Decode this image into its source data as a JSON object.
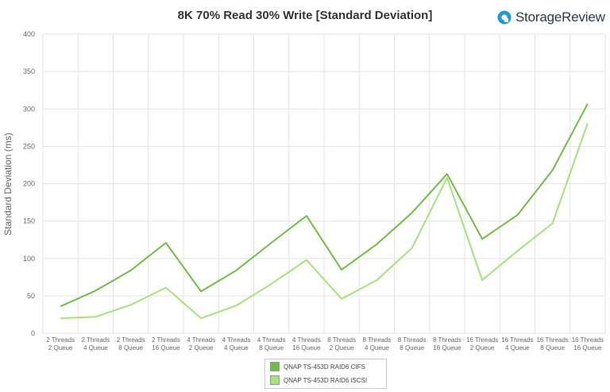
{
  "brand": {
    "name": "StorageReview",
    "logo_icon": "storagereview-logo-icon",
    "logo_color": "#1e9bd7"
  },
  "chart_data": {
    "type": "line",
    "title": "8K 70% Read 30% Write [Standard Deviation]",
    "xlabel": "",
    "ylabel": "Standard Deviation (ms)",
    "ylim": [
      0,
      400
    ],
    "yticks": [
      0,
      50,
      100,
      150,
      200,
      250,
      300,
      350,
      400
    ],
    "grid": true,
    "legend_position": "bottom",
    "categories": [
      [
        "2 Threads",
        "2 Queue"
      ],
      [
        "2 Threads",
        "4 Queue"
      ],
      [
        "2 Threads",
        "8 Queue"
      ],
      [
        "2 Threads",
        "16 Queue"
      ],
      [
        "4 Threads",
        "2 Queue"
      ],
      [
        "4 Threads",
        "4 Queue"
      ],
      [
        "4 Threads",
        "8 Queue"
      ],
      [
        "4 Threads",
        "16 Queue"
      ],
      [
        "8 Threads",
        "2 Queue"
      ],
      [
        "8 Threads",
        "4 Queue"
      ],
      [
        "8 Threads",
        "8 Queue"
      ],
      [
        "8 Threads",
        "16 Queue"
      ],
      [
        "16 Threads",
        "2 Queue"
      ],
      [
        "16 Threads",
        "4 Queue"
      ],
      [
        "16 Threads",
        "8 Queue"
      ],
      [
        "16 Threads",
        "16 Queue"
      ]
    ],
    "series": [
      {
        "name": "QNAP TS-453D RAID6 CIFS",
        "color": "#6fbe44",
        "values": [
          36,
          57,
          84,
          121,
          56,
          84,
          121,
          157,
          85,
          119,
          161,
          213,
          126,
          158,
          218,
          307
        ]
      },
      {
        "name": "QNAP TS-453D RAID6 iSCSI",
        "color": "#a6e27a",
        "values": [
          20,
          22,
          38,
          61,
          20,
          37,
          66,
          98,
          46,
          71,
          114,
          208,
          71,
          110,
          147,
          281
        ]
      }
    ]
  }
}
